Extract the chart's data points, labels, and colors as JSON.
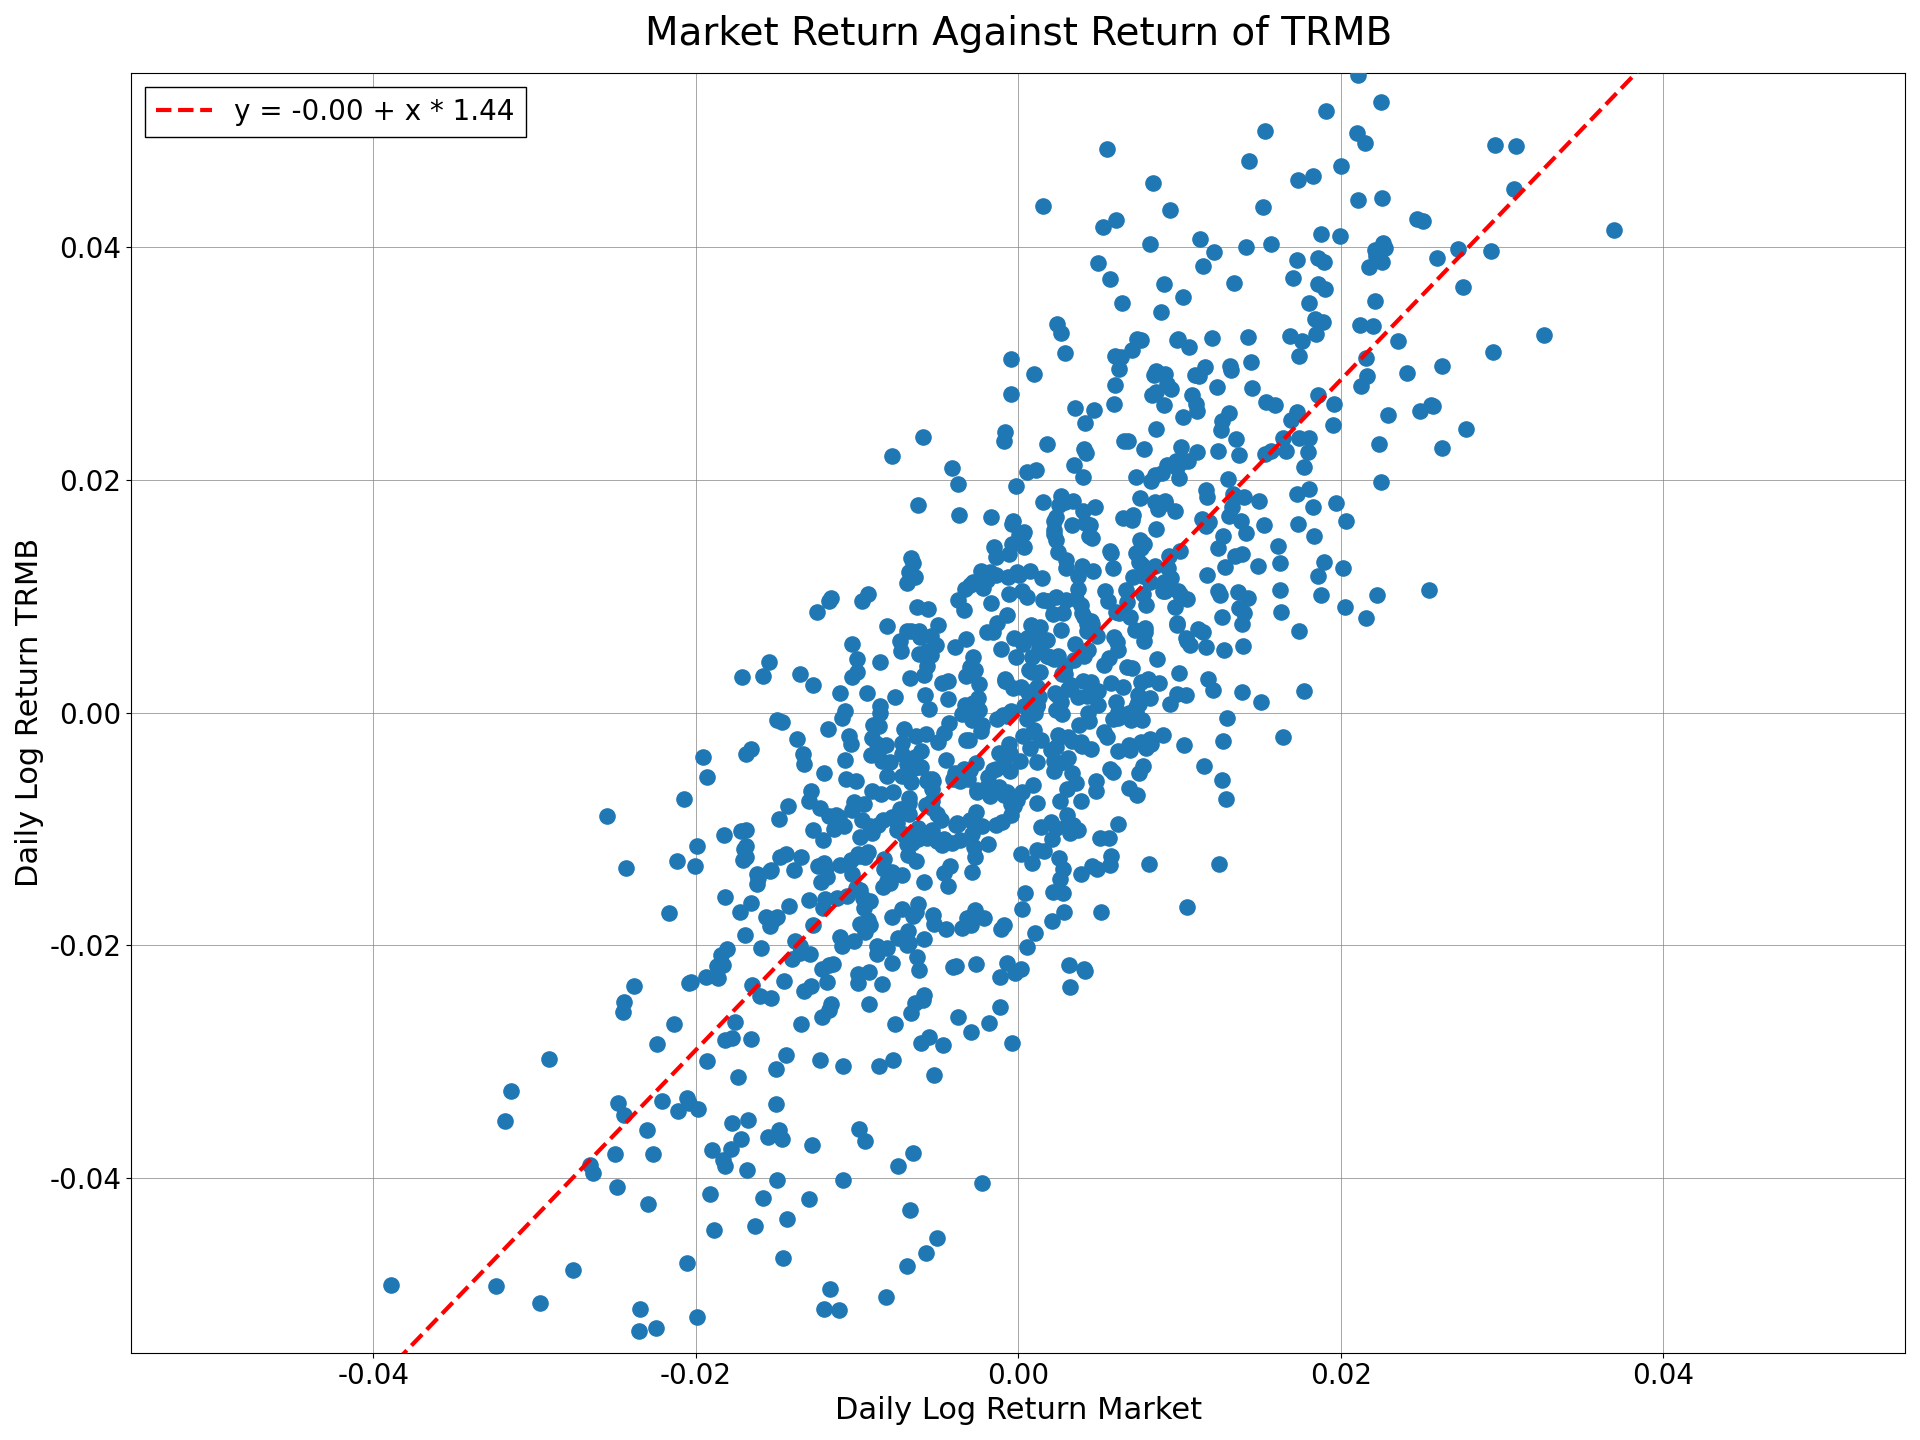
{
  "title": "Market Return Against Return of TRMB",
  "xlabel": "Daily Log Return Market",
  "ylabel": "Daily Log Return TRMB",
  "regression_label": "y = -0.00 + x * 1.44",
  "intercept": -0.0002,
  "slope": 1.44,
  "scatter_color": "#1f77b4",
  "line_color": "#ff0000",
  "n_points": 1000,
  "random_seed": 42,
  "xlim": [
    -0.055,
    0.055
  ],
  "ylim": [
    -0.055,
    0.055
  ],
  "xticks": [
    -0.04,
    -0.02,
    0.0,
    0.02,
    0.04
  ],
  "yticks": [
    -0.04,
    -0.02,
    0.0,
    0.02,
    0.04
  ],
  "market_std": 0.012,
  "noise_std": 0.013,
  "marker_size": 120,
  "alpha": 1.0,
  "title_fontsize": 28,
  "label_fontsize": 22,
  "tick_fontsize": 20,
  "legend_fontsize": 20,
  "linewidth": 3.0
}
